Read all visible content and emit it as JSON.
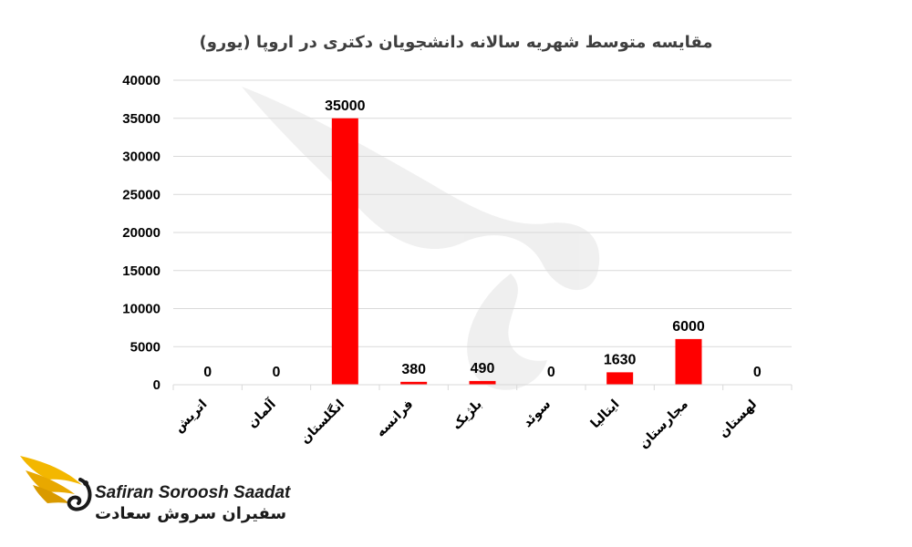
{
  "chart_data": {
    "type": "bar",
    "title": "مقایسه متوسط شهریه سالانه دانشجویان دکتری در اروپا (یورو)",
    "categories": [
      "اتریش",
      "آلمان",
      "انگلستان",
      "فرانسه",
      "بلژیک",
      "سوئد",
      "ایتالیا",
      "مجارستان",
      "لهستان"
    ],
    "values": [
      0,
      0,
      35000,
      380,
      490,
      0,
      1630,
      6000,
      0
    ],
    "data_labels": [
      "0",
      "0",
      "35000",
      "380",
      "490",
      "0",
      "1630",
      "6000",
      "0"
    ],
    "yticks": [
      "0",
      "5000",
      "10000",
      "15000",
      "20000",
      "25000",
      "30000",
      "35000",
      "40000"
    ],
    "ylim": [
      0,
      40000
    ],
    "grid": true,
    "legend": "none",
    "bar_color": "#ff0000",
    "xlabel": "",
    "ylabel": ""
  },
  "logo": {
    "latin": "Safiran Soroosh Saadat",
    "farsi": "سفیران سروش سعادت",
    "colors": {
      "wing": "#f3b700",
      "text": "#1a1a1a"
    }
  }
}
